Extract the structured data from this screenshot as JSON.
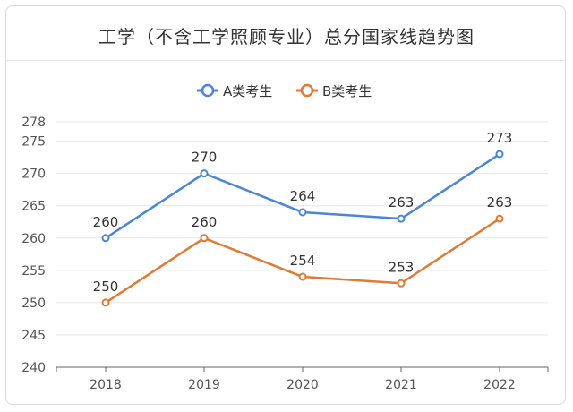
{
  "chart_data": {
    "type": "line",
    "title": "工学（不含工学照顾专业）总分国家线趋势图",
    "categories": [
      "2018",
      "2019",
      "2020",
      "2021",
      "2022"
    ],
    "series": [
      {
        "name": "A类考生",
        "values": [
          260,
          270,
          264,
          263,
          273
        ],
        "color": "#4a86d8"
      },
      {
        "name": "B类考生",
        "values": [
          250,
          260,
          254,
          253,
          263
        ],
        "color": "#e07a35"
      }
    ],
    "yticks": [
      240,
      245,
      250,
      255,
      260,
      265,
      270,
      275,
      278
    ],
    "ylim": [
      240,
      278
    ],
    "grid": true,
    "legend": "top-center"
  }
}
